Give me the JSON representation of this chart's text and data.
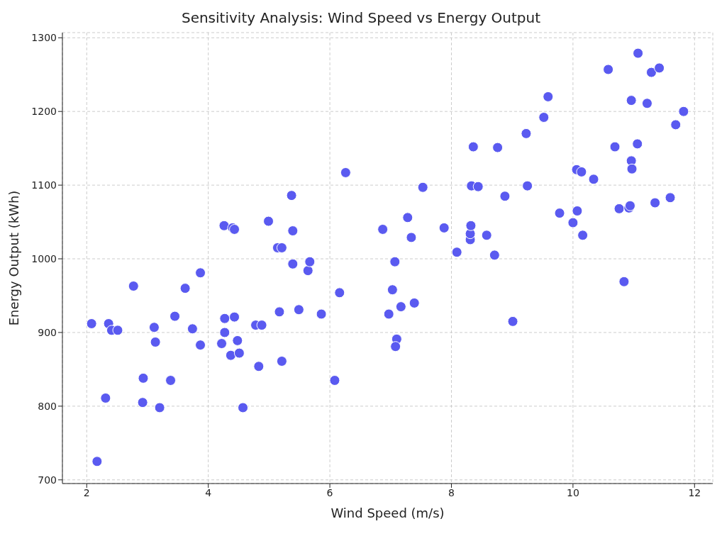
{
  "chart_data": {
    "type": "scatter",
    "title": "Sensitivity Analysis: Wind Speed vs Energy Output",
    "xlabel": "Wind Speed (m/s)",
    "ylabel": "Energy Output (kWh)",
    "x": [
      2.08,
      2.17,
      2.36,
      2.41,
      2.51,
      2.31,
      2.77,
      2.92,
      2.93,
      3.11,
      3.13,
      3.2,
      3.38,
      3.45,
      3.62,
      3.74,
      3.87,
      3.87,
      4.26,
      4.4,
      4.43,
      4.27,
      4.43,
      4.27,
      4.22,
      4.37,
      4.48,
      4.51,
      4.57,
      4.78,
      4.88,
      4.83,
      4.99,
      5.14,
      5.21,
      5.17,
      5.21,
      5.37,
      5.39,
      5.39,
      5.49,
      5.64,
      5.67,
      5.86,
      6.08,
      6.16,
      6.26,
      6.87,
      6.97,
      7.03,
      7.07,
      7.1,
      7.08,
      7.17,
      7.28,
      7.34,
      7.39,
      7.53,
      7.88,
      8.09,
      8.31,
      8.31,
      8.32,
      8.33,
      8.36,
      8.44,
      8.58,
      8.71,
      8.76,
      8.88,
      9.01,
      9.23,
      9.25,
      9.52,
      9.59,
      9.78,
      10.0,
      10.06,
      10.07,
      10.14,
      10.16,
      10.34,
      10.58,
      10.69,
      10.76,
      10.84,
      10.92,
      10.94,
      10.96,
      10.97,
      10.96,
      11.06,
      11.07,
      11.22,
      11.29,
      11.35,
      11.42,
      11.6,
      11.69,
      11.82
    ],
    "series": [
      {
        "color": "#5a5af0",
        "values": [
          912,
          725,
          912,
          903,
          903,
          811,
          963,
          805,
          838,
          907,
          887,
          798,
          835,
          922,
          960,
          905,
          883,
          981,
          1045,
          1042,
          1040,
          919,
          921,
          900,
          885,
          869,
          889,
          872,
          798,
          910,
          910,
          854,
          1051,
          1015,
          1015,
          928,
          861,
          1086,
          1038,
          993,
          931,
          984,
          996,
          925,
          835,
          954,
          1117,
          1040,
          925,
          958,
          996,
          891,
          881,
          935,
          1056,
          1029,
          940,
          1097,
          1042,
          1009,
          1026,
          1034,
          1045,
          1099,
          1152,
          1098,
          1032,
          1005,
          1151,
          1085,
          915,
          1170,
          1099,
          1192,
          1220,
          1062,
          1049,
          1121,
          1065,
          1118,
          1032,
          1108,
          1257,
          1152,
          1068,
          969,
          1069,
          1072,
          1133,
          1122,
          1215,
          1156,
          1279,
          1211,
          1253,
          1076,
          1259,
          1083,
          1182,
          1200
        ]
      }
    ],
    "xlim": [
      1.6,
      12.3
    ],
    "xticks": [
      2,
      4,
      6,
      8,
      10,
      12
    ],
    "ylim": [
      695,
      1307
    ],
    "yticks": [
      700,
      800,
      900,
      1000,
      1100,
      1200,
      1300
    ],
    "grid": true,
    "marker": "circle",
    "line_style": "dashed"
  }
}
